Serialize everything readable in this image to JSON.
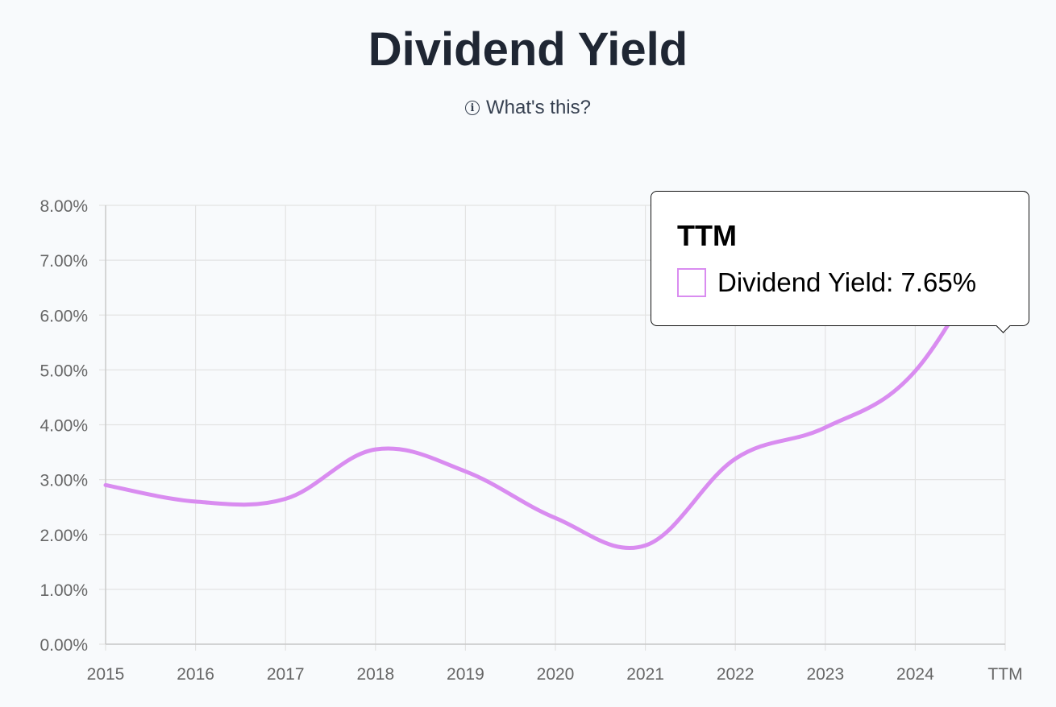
{
  "header": {
    "title": "Dividend Yield",
    "help_label": "What's this?"
  },
  "tooltip": {
    "title": "TTM",
    "series_label": "Dividend Yield",
    "value_label": "7.65%"
  },
  "chart_data": {
    "type": "line",
    "title": "Dividend Yield",
    "xlabel": "",
    "ylabel": "",
    "categories": [
      "2015",
      "2016",
      "2017",
      "2018",
      "2019",
      "2020",
      "2021",
      "2022",
      "2023",
      "2024",
      "TTM"
    ],
    "y_ticks": [
      "0.00%",
      "1.00%",
      "2.00%",
      "3.00%",
      "4.00%",
      "5.00%",
      "6.00%",
      "7.00%",
      "8.00%"
    ],
    "ylim": [
      0,
      8
    ],
    "grid": true,
    "legend": "none",
    "series": [
      {
        "values": [
          2.9,
          2.6,
          2.65,
          3.55,
          3.15,
          2.3,
          1.8,
          3.38,
          3.95,
          4.98,
          7.65
        ],
        "color": "#d98cf0"
      }
    ],
    "highlighted_category": "TTM"
  }
}
